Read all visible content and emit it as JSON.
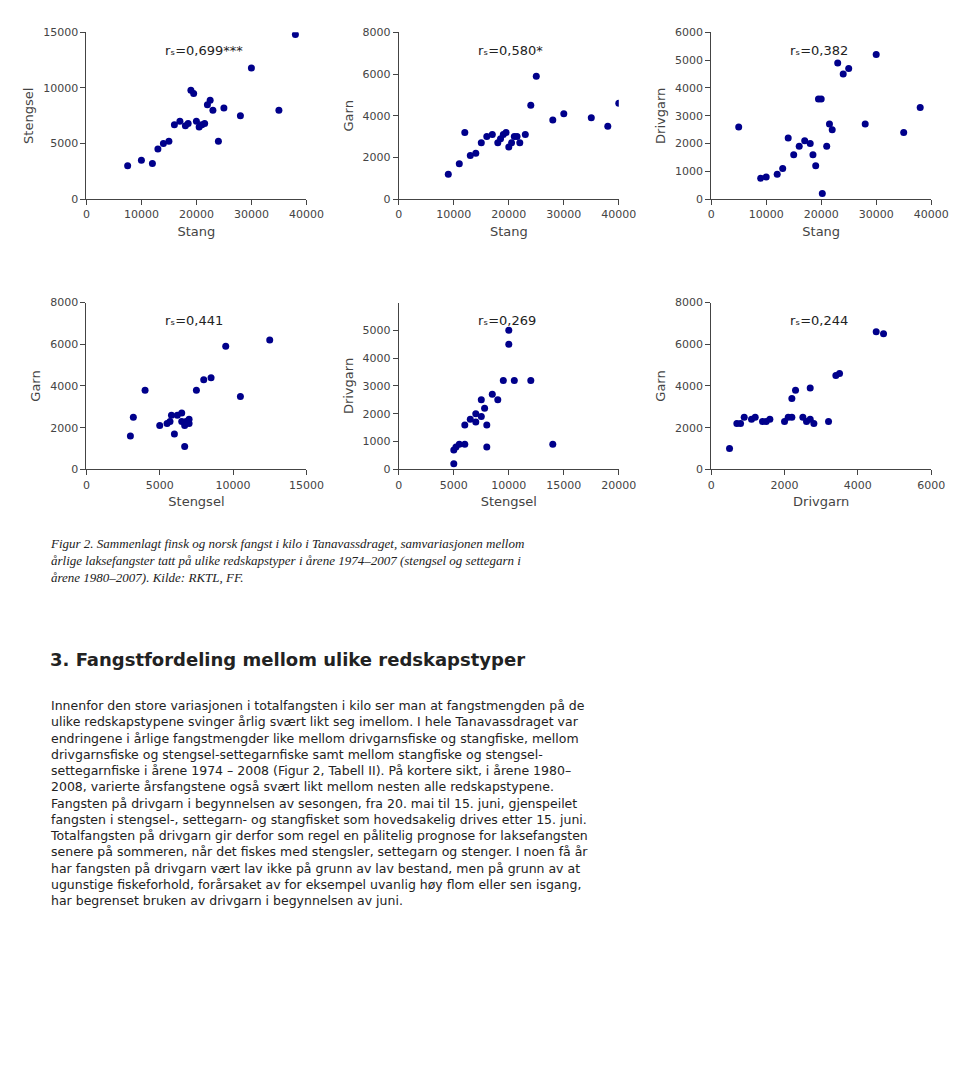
{
  "chart_data": [
    {
      "type": "scatter",
      "annotation": "rₛ=0,699***",
      "xlabel": "Stang",
      "ylabel": "Stengsel",
      "color": "#00008B",
      "grid": false,
      "xlim": [
        0,
        40000
      ],
      "ylim": [
        0,
        15000
      ],
      "xticks": [
        0,
        10000,
        20000,
        30000,
        40000
      ],
      "yticks": [
        0,
        5000,
        10000,
        15000
      ],
      "x": [
        7500,
        10000,
        12000,
        13000,
        14000,
        15000,
        16000,
        17000,
        18000,
        18500,
        19000,
        19500,
        20000,
        20500,
        21000,
        21500,
        22000,
        22500,
        23000,
        24000,
        25000,
        28000,
        30000,
        35000,
        38000
      ],
      "values": [
        3000,
        3500,
        3200,
        4500,
        5000,
        5200,
        6700,
        7000,
        6600,
        6800,
        9800,
        9500,
        7000,
        6500,
        6700,
        6800,
        8500,
        8900,
        8000,
        5200,
        8200,
        7500,
        11800,
        8000,
        14800
      ]
    },
    {
      "type": "scatter",
      "annotation": "rₛ=0,580*",
      "xlabel": "Stang",
      "ylabel": "Garn",
      "color": "#00008B",
      "grid": false,
      "xlim": [
        0,
        40000
      ],
      "ylim": [
        0,
        8000
      ],
      "xticks": [
        0,
        10000,
        20000,
        30000,
        40000
      ],
      "yticks": [
        0,
        2000,
        4000,
        6000,
        8000
      ],
      "x": [
        9000,
        11000,
        12000,
        13000,
        14000,
        15000,
        16000,
        17000,
        18000,
        18500,
        19000,
        19500,
        20000,
        20500,
        21000,
        21500,
        22000,
        23000,
        24000,
        25000,
        28000,
        30000,
        35000,
        38000,
        40000
      ],
      "values": [
        1200,
        1700,
        3200,
        2100,
        2200,
        2700,
        3000,
        3100,
        2700,
        2900,
        3100,
        3200,
        2500,
        2700,
        3000,
        3000,
        2700,
        3100,
        4500,
        5900,
        3800,
        4100,
        3900,
        3500,
        4600
      ]
    },
    {
      "type": "scatter",
      "annotation": "rₛ=0,382",
      "xlabel": "Stang",
      "ylabel": "Drivgarn",
      "color": "#00008B",
      "grid": false,
      "xlim": [
        0,
        40000
      ],
      "ylim": [
        0,
        6000
      ],
      "xticks": [
        0,
        10000,
        20000,
        30000,
        40000
      ],
      "yticks": [
        0,
        1000,
        2000,
        3000,
        4000,
        5000,
        6000
      ],
      "x": [
        5000,
        9000,
        10000,
        12000,
        13000,
        14000,
        15000,
        16000,
        17000,
        18000,
        18500,
        19000,
        19500,
        20000,
        20200,
        21000,
        21500,
        22000,
        23000,
        24000,
        25000,
        28000,
        30000,
        35000,
        38000
      ],
      "values": [
        2600,
        750,
        800,
        900,
        1100,
        2200,
        1600,
        1900,
        2100,
        2000,
        1600,
        1200,
        3600,
        3600,
        200,
        1900,
        2700,
        2500,
        4900,
        4500,
        4700,
        2700,
        5200,
        2400,
        3300
      ]
    },
    {
      "type": "scatter",
      "annotation": "rₛ=0,441",
      "xlabel": "Stengsel",
      "ylabel": "Garn",
      "color": "#00008B",
      "grid": false,
      "xlim": [
        0,
        15000
      ],
      "ylim": [
        0,
        8000
      ],
      "xticks": [
        0,
        5000,
        10000,
        15000
      ],
      "yticks": [
        0,
        2000,
        4000,
        6000,
        8000
      ],
      "x": [
        3000,
        3200,
        4000,
        5000,
        5500,
        5700,
        5800,
        6000,
        6200,
        6500,
        6500,
        6700,
        6700,
        6800,
        7000,
        7000,
        7500,
        8000,
        8500,
        9500,
        10500,
        12500
      ],
      "values": [
        1600,
        2500,
        3800,
        2100,
        2200,
        2300,
        2600,
        1700,
        2600,
        2300,
        2700,
        2100,
        1100,
        2300,
        2400,
        2200,
        3800,
        4300,
        4400,
        5900,
        3500,
        6200
      ]
    },
    {
      "type": "scatter",
      "annotation": "rₛ=0,269",
      "xlabel": "Stengsel",
      "ylabel": "Drivgarn",
      "color": "#00008B",
      "grid": false,
      "xlim": [
        0,
        20000
      ],
      "ylim": [
        0,
        6000
      ],
      "xticks": [
        0,
        5000,
        10000,
        15000,
        20000
      ],
      "yticks": [
        0,
        1000,
        2000,
        3000,
        4000,
        5000
      ],
      "x": [
        5000,
        5000,
        5200,
        5500,
        6000,
        6000,
        6500,
        7000,
        7000,
        7500,
        7500,
        7800,
        8000,
        8000,
        8500,
        9000,
        9500,
        10000,
        10000,
        10500,
        12000,
        14000
      ],
      "values": [
        200,
        700,
        800,
        900,
        900,
        1600,
        1800,
        1700,
        2000,
        1900,
        2500,
        2200,
        1600,
        800,
        2700,
        2500,
        3200,
        4500,
        5000,
        3200,
        3200,
        900
      ]
    },
    {
      "type": "scatter",
      "annotation": "rₛ=0,244",
      "xlabel": "Drivgarn",
      "ylabel": "Garn",
      "color": "#00008B",
      "grid": false,
      "xlim": [
        0,
        6000
      ],
      "ylim": [
        0,
        8000
      ],
      "xticks": [
        0,
        2000,
        4000,
        6000
      ],
      "yticks": [
        0,
        2000,
        4000,
        6000,
        8000
      ],
      "x": [
        500,
        700,
        800,
        900,
        1100,
        1200,
        1400,
        1500,
        1600,
        2000,
        2100,
        2200,
        2200,
        2300,
        2500,
        2600,
        2700,
        2700,
        2800,
        3200,
        3400,
        3500,
        4500,
        4700
      ],
      "values": [
        1000,
        2200,
        2200,
        2500,
        2400,
        2500,
        2300,
        2300,
        2400,
        2300,
        2500,
        3400,
        2500,
        3800,
        2500,
        2300,
        2400,
        3900,
        2200,
        2300,
        4500,
        4600,
        6600,
        6500
      ]
    }
  ],
  "figure_caption": "Figur 2. Sammenlagt finsk og norsk fangst i kilo i Tanavassdraget, samvariasjonen mellom\nårlige laksefangster tatt på ulike redskapstyper i årene 1974–2007 (stengsel og settegarn i\nårene 1980–2007). Kilde: RKTL, FF.",
  "section_heading": "3. Fangstfordeling mellom ulike redskapstyper",
  "body_text": "Innenfor den store variasjonen i totalfangsten i kilo ser man at fangstmengden på de\nulike redskapstypene svinger årlig svært likt seg imellom. I hele Tanavassdraget var\nendringene i årlige fangstmengder like mellom drivgarnsfiske og stangfiske, mellom\ndrivgarnsfiske og stengsel-settegarnfiske samt mellom stangfiske og stengsel-\nsettegarnfiske i årene 1974 – 2008 (Figur 2, Tabell II). På kortere sikt, i årene 1980–\n2008, varierte årsfangstene også svært likt mellom nesten alle redskapstypene.\nFangsten på drivgarn i begynnelsen av sesongen, fra 20. mai til 15. juni, gjenspeilet\nfangsten i stengsel-, settegarn- og stangfisket som hovedsakelig drives etter 15. juni.\nTotalfangsten på drivgarn gir derfor som regel en pålitelig prognose for laksefangsten\nsenere på sommeren, når det fiskes med stengsler, settegarn og stenger. I noen få år\nhar fangsten på drivgarn vært lav ikke på grunn av lav bestand, men på grunn av at\nugunstige fiskeforhold, forårsaket av for eksempel uvanlig høy flom eller sen isgang,\nhar begrenset bruken av drivgarn i begynnelsen av juni."
}
